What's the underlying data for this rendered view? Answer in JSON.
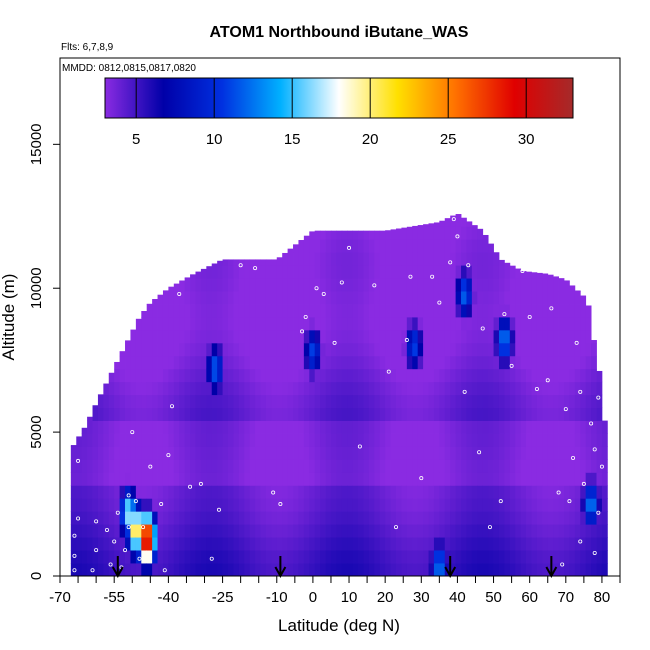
{
  "chart_data": {
    "type": "heatmap",
    "title": "ATOM1 Northbound iButane_WAS",
    "note_flights": "Flts: 6,7,8,9",
    "note_dates": "MMDD: 0812,0815,0817,0820",
    "xlabel": "Latitude (deg N)",
    "ylabel": "Altitude (m)",
    "xlim": [
      -70,
      85
    ],
    "ylim": [
      0,
      18000
    ],
    "x_ticks": [
      -70,
      -55,
      -40,
      -25,
      -10,
      0,
      10,
      20,
      30,
      40,
      50,
      60,
      70,
      80
    ],
    "x_minor_step": 5,
    "y_ticks": [
      0,
      5000,
      10000,
      15000
    ],
    "colorbar": {
      "range": [
        3,
        33
      ],
      "ticks": [
        5,
        10,
        15,
        20,
        25,
        30
      ],
      "stops": [
        "#8a2be2",
        "#0000a8",
        "#0030e0",
        "#00b0ff",
        "#ffffff",
        "#ffe000",
        "#ff7000",
        "#e00000",
        "#a52a2a"
      ]
    },
    "envelope_top": [
      [
        -67,
        4400
      ],
      [
        -63,
        5200
      ],
      [
        -60,
        6000
      ],
      [
        -56,
        7000
      ],
      [
        -52,
        8000
      ],
      [
        -48,
        9000
      ],
      [
        -45,
        9500
      ],
      [
        -40,
        10000
      ],
      [
        -33,
        10500
      ],
      [
        -25,
        11000
      ],
      [
        -15,
        11000
      ],
      [
        -10,
        11000
      ],
      [
        0,
        12000
      ],
      [
        20,
        12000
      ],
      [
        35,
        12300
      ],
      [
        40,
        12600
      ],
      [
        47,
        12000
      ],
      [
        52,
        11000
      ],
      [
        58,
        10600
      ],
      [
        65,
        10500
      ],
      [
        70,
        10300
      ],
      [
        76,
        9600
      ],
      [
        78,
        8000
      ],
      [
        80,
        6600
      ],
      [
        81,
        5000
      ],
      [
        81,
        0
      ]
    ],
    "hotspots": [
      {
        "lat": -46,
        "alt": 1300,
        "value": 32
      },
      {
        "lat": -49,
        "alt": 1600,
        "value": 22
      },
      {
        "lat": -51,
        "alt": 2200,
        "value": 17
      },
      {
        "lat": 35,
        "alt": 350,
        "value": 13
      },
      {
        "lat": 77,
        "alt": 2500,
        "value": 13
      },
      {
        "lat": -27,
        "alt": 7200,
        "value": 12
      },
      {
        "lat": 53,
        "alt": 8200,
        "value": 13
      },
      {
        "lat": 42,
        "alt": 9800,
        "value": 12
      },
      {
        "lat": 0,
        "alt": 7800,
        "value": 11
      },
      {
        "lat": 28,
        "alt": 8000,
        "value": 11
      }
    ],
    "arrows_latitude": [
      -54,
      -9,
      38,
      66
    ],
    "sample_points": [
      [
        -66,
        200
      ],
      [
        -66,
        700
      ],
      [
        -66,
        1400
      ],
      [
        -65,
        2000
      ],
      [
        -65,
        4000
      ],
      [
        -61,
        200
      ],
      [
        -60,
        900
      ],
      [
        -60,
        1900
      ],
      [
        -57,
        1600
      ],
      [
        -56,
        400
      ],
      [
        -55,
        1200
      ],
      [
        -54,
        2200
      ],
      [
        -53,
        300
      ],
      [
        -52,
        900
      ],
      [
        -51,
        1700
      ],
      [
        -51,
        2800
      ],
      [
        -50,
        5000
      ],
      [
        -49,
        2600
      ],
      [
        -48,
        600
      ],
      [
        -47,
        1700
      ],
      [
        -45,
        3800
      ],
      [
        -42,
        2500
      ],
      [
        -41,
        200
      ],
      [
        -40,
        4200
      ],
      [
        -39,
        5900
      ],
      [
        -37,
        9800
      ],
      [
        -34,
        3100
      ],
      [
        -31,
        3200
      ],
      [
        -28,
        600
      ],
      [
        -26,
        2300
      ],
      [
        -20,
        10800
      ],
      [
        -16,
        10700
      ],
      [
        -11,
        2900
      ],
      [
        -9,
        2500
      ],
      [
        -3,
        8500
      ],
      [
        -2,
        9000
      ],
      [
        1,
        10000
      ],
      [
        3,
        9800
      ],
      [
        6,
        8100
      ],
      [
        8,
        10200
      ],
      [
        10,
        11400
      ],
      [
        13,
        4500
      ],
      [
        17,
        10100
      ],
      [
        21,
        7100
      ],
      [
        23,
        1700
      ],
      [
        26,
        8200
      ],
      [
        27,
        10400
      ],
      [
        30,
        3400
      ],
      [
        33,
        10400
      ],
      [
        35,
        9500
      ],
      [
        38,
        10900
      ],
      [
        39,
        12400
      ],
      [
        40,
        11800
      ],
      [
        42,
        6400
      ],
      [
        43,
        10800
      ],
      [
        46,
        4300
      ],
      [
        47,
        8600
      ],
      [
        49,
        1700
      ],
      [
        52,
        2600
      ],
      [
        53,
        9100
      ],
      [
        55,
        7300
      ],
      [
        58,
        10600
      ],
      [
        60,
        9000
      ],
      [
        62,
        6500
      ],
      [
        65,
        6800
      ],
      [
        66,
        9300
      ],
      [
        68,
        2900
      ],
      [
        69,
        400
      ],
      [
        70,
        5800
      ],
      [
        71,
        2600
      ],
      [
        72,
        4100
      ],
      [
        73,
        8100
      ],
      [
        74,
        6400
      ],
      [
        74,
        1200
      ],
      [
        75,
        3200
      ],
      [
        76,
        9800
      ],
      [
        77,
        5300
      ],
      [
        78,
        4400
      ],
      [
        78,
        800
      ],
      [
        79,
        6200
      ],
      [
        79,
        2200
      ],
      [
        80,
        3800
      ],
      [
        80,
        7600
      ],
      [
        80,
        9600
      ]
    ]
  }
}
